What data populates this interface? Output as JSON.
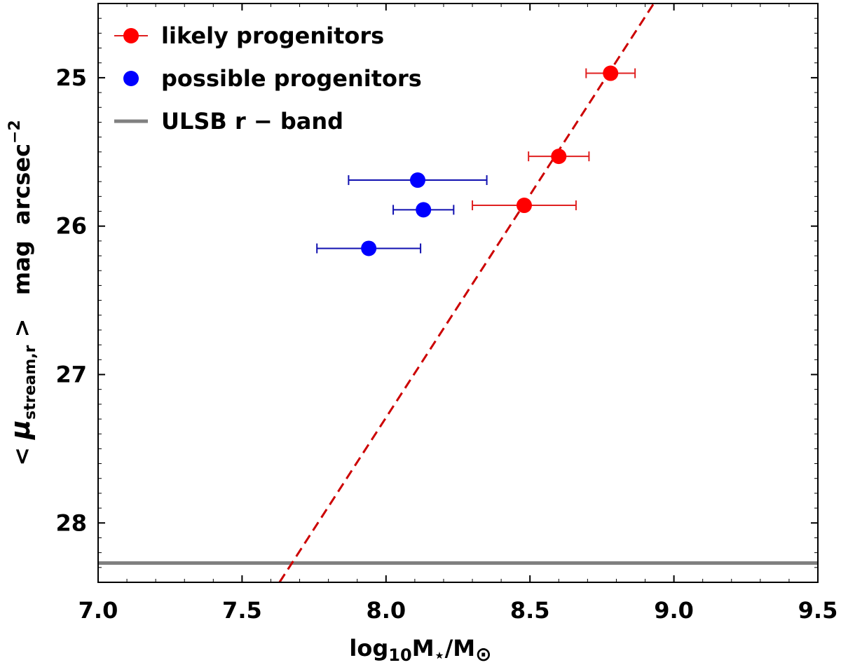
{
  "chart_data": {
    "type": "scatter",
    "xlabel": {
      "base": "log",
      "sub1": "10",
      "mid": "M",
      "sub2": "⋆",
      "slash": "/M",
      "sub3": "⊙"
    },
    "ylabel": {
      "open": "< ",
      "mu": "μ",
      "sub": "stream,r",
      "close": " >   mag  arcsec",
      "sup": "−2"
    },
    "xlim": [
      7.0,
      9.5
    ],
    "ylim": [
      28.4,
      24.5
    ],
    "y_inverted": true,
    "xticks": [
      7.0,
      7.5,
      8.0,
      8.5,
      9.0,
      9.5
    ],
    "xtick_labels": [
      "7.0",
      "7.5",
      "8.0",
      "8.5",
      "9.0",
      "9.5"
    ],
    "yticks": [
      25,
      26,
      27,
      28
    ],
    "ytick_labels": [
      "25",
      "26",
      "27",
      "28"
    ],
    "grid": false,
    "legend_position": "top-left",
    "series": [
      {
        "name": "likely progenitors",
        "color": "#ff0000",
        "errcolor": "#e02020",
        "points": [
          {
            "x": 8.78,
            "y": 24.97,
            "xerr": 0.085
          },
          {
            "x": 8.6,
            "y": 25.53,
            "xerr": 0.105
          },
          {
            "x": 8.48,
            "y": 25.86,
            "xerr": 0.18
          }
        ]
      },
      {
        "name": "possible progenitors",
        "color": "#0000ff",
        "errcolor": "#1010b0",
        "points": [
          {
            "x": 8.11,
            "y": 25.69,
            "xerr": 0.24
          },
          {
            "x": 8.13,
            "y": 25.89,
            "xerr": 0.105
          },
          {
            "x": 7.94,
            "y": 26.15,
            "xerr": 0.18
          }
        ]
      }
    ],
    "fit_line": {
      "color": "#cc0000",
      "style": "dashed",
      "x": [
        7.63,
        8.93
      ],
      "y": [
        28.4,
        24.5
      ]
    },
    "reference_line": {
      "name": "ULSB r − band",
      "color": "#808080",
      "y": 28.27
    },
    "legend": [
      "likely progenitors",
      "possible progenitors",
      "ULSB r − band"
    ]
  }
}
